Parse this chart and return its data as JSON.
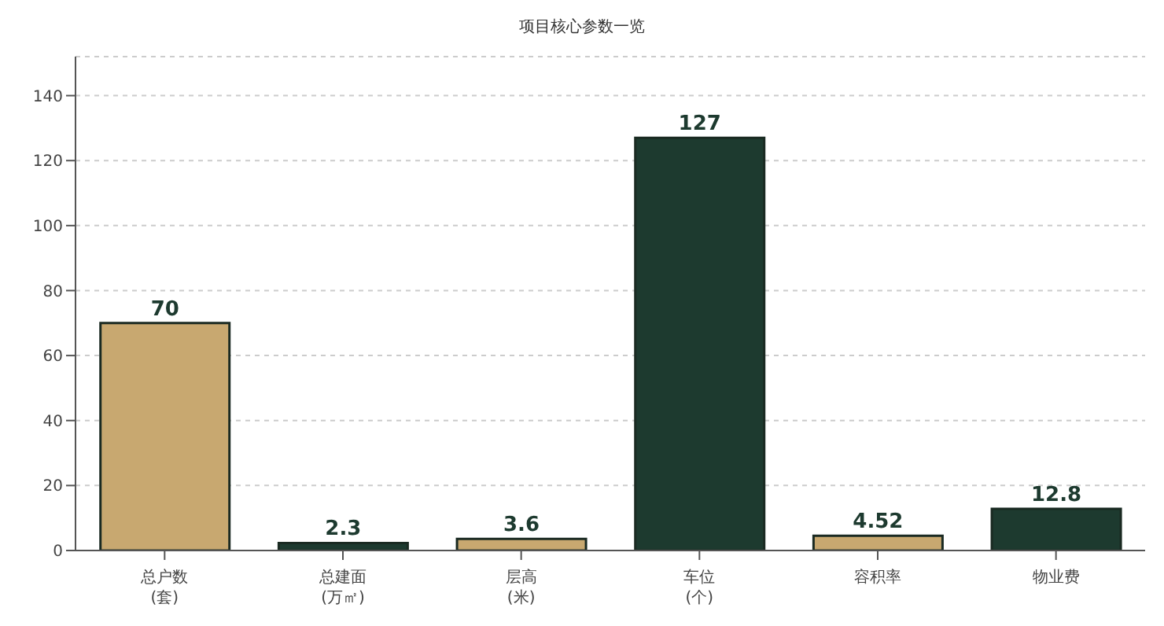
{
  "chart_data": {
    "type": "bar",
    "title": "项目核心参数一览",
    "categories": [
      "总户数\n(套)",
      "总建面\n(万㎡)",
      "层高\n(米)",
      "车位\n(个)",
      "容积率",
      "物业费"
    ],
    "values": [
      70,
      2.3,
      3.6,
      127,
      4.52,
      12.8
    ],
    "colors": [
      "#c8a870",
      "#1d3a2f",
      "#c8a870",
      "#1d3a2f",
      "#c8a870",
      "#1d3a2f"
    ],
    "ylim": [
      0,
      152
    ],
    "yticks": [
      0,
      20,
      40,
      60,
      80,
      100,
      120,
      140
    ],
    "grid": "y",
    "data_labels": true
  }
}
